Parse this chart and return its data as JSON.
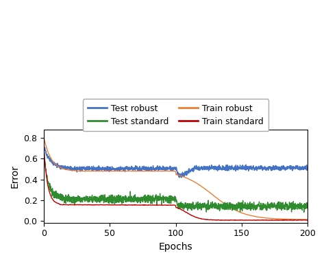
{
  "xlabel": "Epochs",
  "ylabel": "Error",
  "xlim": [
    0,
    200
  ],
  "ylim": [
    -0.02,
    0.88
  ],
  "xticks": [
    0,
    50,
    100,
    150,
    200
  ],
  "yticks": [
    0.0,
    0.2,
    0.4,
    0.6,
    0.8
  ],
  "colors": {
    "test_robust": "#4472C4",
    "train_robust": "#ED7D31",
    "test_standard": "#2E8B2E",
    "train_standard": "#C00000"
  },
  "linewidth": 1.0,
  "figsize": [
    4.76,
    3.82
  ],
  "dpi": 100
}
